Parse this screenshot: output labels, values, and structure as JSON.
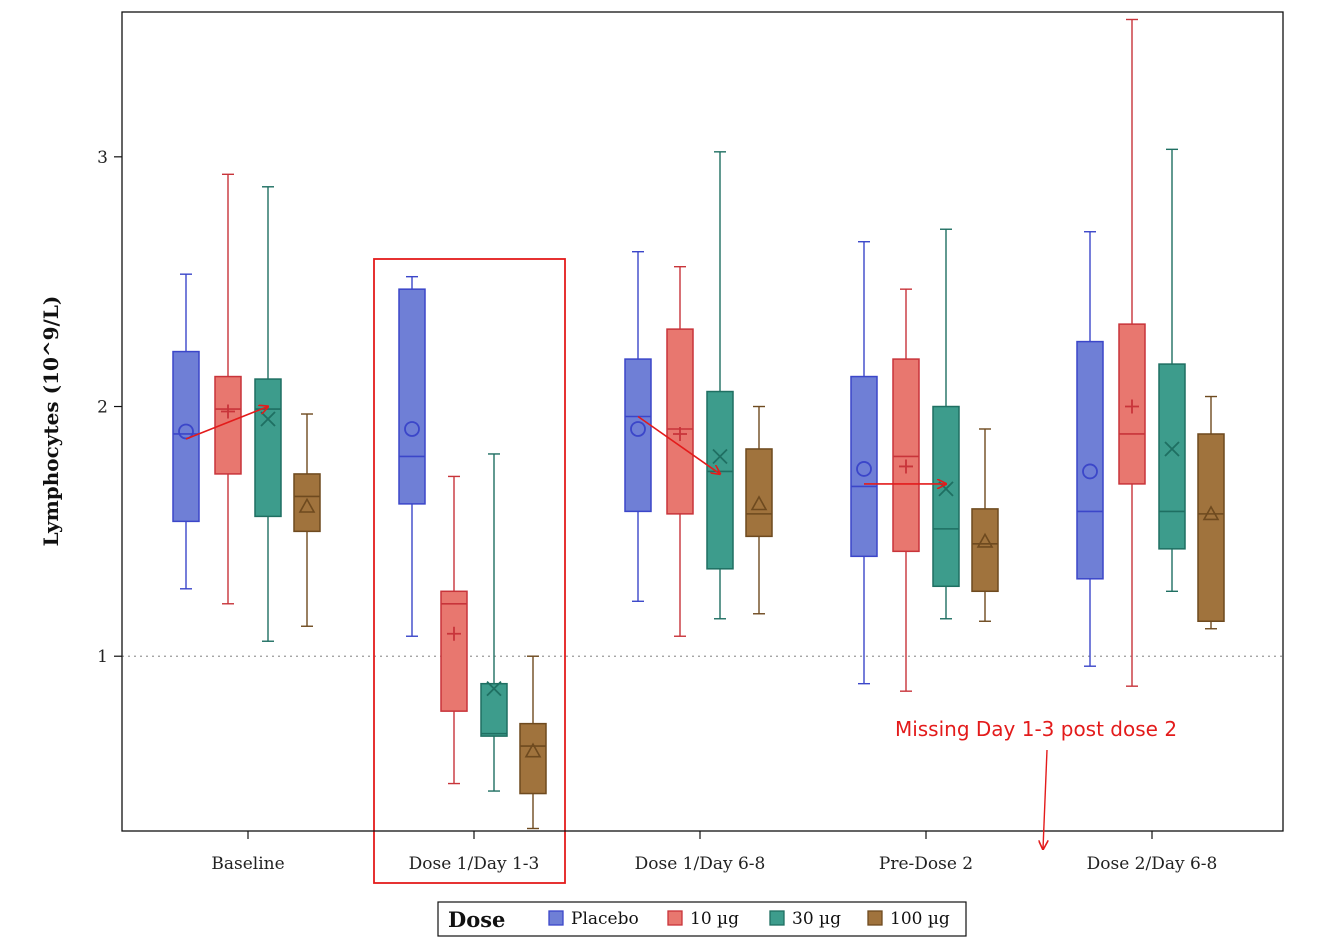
{
  "chart_data": {
    "type": "box",
    "ylabel": "Lymphocytes (10^9/L)",
    "xlabel": "",
    "ylim": [
      0.3,
      3.58
    ],
    "yticks": [
      1,
      2,
      3
    ],
    "reference_line": 1,
    "categories": [
      "Baseline",
      "Dose 1/Day 1-3",
      "Dose 1/Day 6-8",
      "Pre-Dose 2",
      "Dose 2/Day 6-8"
    ],
    "legend": {
      "title": "Dose",
      "position": "bottom"
    },
    "series": [
      {
        "name": "Placebo",
        "color": "#6f7fd6",
        "edge": "#3b46c9",
        "marker": "circle",
        "boxes": [
          {
            "min": 1.27,
            "q1": 1.54,
            "median": 1.89,
            "q3": 2.22,
            "max": 2.53,
            "mean": 1.9
          },
          {
            "min": 1.08,
            "q1": 1.61,
            "median": 1.8,
            "q3": 2.47,
            "max": 2.52,
            "mean": 1.91
          },
          {
            "min": 1.22,
            "q1": 1.58,
            "median": 1.96,
            "q3": 2.19,
            "max": 2.62,
            "mean": 1.91
          },
          {
            "min": 0.89,
            "q1": 1.4,
            "median": 1.68,
            "q3": 2.12,
            "max": 2.66,
            "mean": 1.75
          },
          {
            "min": 0.96,
            "q1": 1.31,
            "median": 1.58,
            "q3": 2.26,
            "max": 2.7,
            "mean": 1.74
          }
        ]
      },
      {
        "name": "10 µg",
        "color": "#e8776f",
        "edge": "#c8343a",
        "marker": "plus",
        "boxes": [
          {
            "min": 1.21,
            "q1": 1.73,
            "median": 1.99,
            "q3": 2.12,
            "max": 2.93,
            "mean": 1.98
          },
          {
            "min": 0.49,
            "q1": 0.78,
            "median": 1.21,
            "q3": 1.26,
            "max": 1.72,
            "mean": 1.09
          },
          {
            "min": 1.08,
            "q1": 1.57,
            "median": 1.91,
            "q3": 2.31,
            "max": 2.56,
            "mean": 1.89
          },
          {
            "min": 0.86,
            "q1": 1.42,
            "median": 1.8,
            "q3": 2.19,
            "max": 2.47,
            "mean": 1.76
          },
          {
            "min": 0.88,
            "q1": 1.69,
            "median": 1.89,
            "q3": 2.33,
            "max": 3.55,
            "mean": 2.0
          }
        ]
      },
      {
        "name": "30 µg",
        "color": "#3d9c8c",
        "edge": "#1f6f62",
        "marker": "x",
        "boxes": [
          {
            "min": 1.06,
            "q1": 1.56,
            "median": 1.99,
            "q3": 2.11,
            "max": 2.88,
            "mean": 1.95
          },
          {
            "min": 0.46,
            "q1": 0.68,
            "median": 0.69,
            "q3": 0.89,
            "max": 1.81,
            "mean": 0.87
          },
          {
            "min": 1.15,
            "q1": 1.35,
            "median": 1.74,
            "q3": 2.06,
            "max": 3.02,
            "mean": 1.8
          },
          {
            "min": 1.15,
            "q1": 1.28,
            "median": 1.51,
            "q3": 2.0,
            "max": 2.71,
            "mean": 1.67
          },
          {
            "min": 1.26,
            "q1": 1.43,
            "median": 1.58,
            "q3": 2.17,
            "max": 3.03,
            "mean": 1.83
          }
        ]
      },
      {
        "name": "100 µg",
        "color": "#a0733d",
        "edge": "#6e4a1f",
        "marker": "triangle",
        "boxes": [
          {
            "min": 1.12,
            "q1": 1.5,
            "median": 1.64,
            "q3": 1.73,
            "max": 1.97,
            "mean": 1.6
          },
          {
            "min": 0.31,
            "q1": 0.45,
            "median": 0.64,
            "q3": 0.73,
            "max": 1.0,
            "mean": 0.62
          },
          {
            "min": 1.17,
            "q1": 1.48,
            "median": 1.57,
            "q3": 1.83,
            "max": 2.0,
            "mean": 1.61
          },
          {
            "min": 1.14,
            "q1": 1.26,
            "median": 1.45,
            "q3": 1.59,
            "max": 1.91,
            "mean": 1.46
          },
          {
            "min": 1.11,
            "q1": 1.14,
            "median": 1.57,
            "q3": 1.89,
            "max": 2.04,
            "mean": 1.57
          }
        ]
      }
    ],
    "annotations": {
      "note_text": "Missing Day 1-3 post dose 2",
      "highlight_category": "Dose 1/Day 1-3",
      "highlight_color": "#e31b1b",
      "arrows": [
        {
          "from": {
            "category": 0,
            "series": 0,
            "y": 1.87
          },
          "to": {
            "category": 0,
            "series": 2,
            "y": 2.0
          }
        },
        {
          "from": {
            "category": 2,
            "series": 0,
            "y": 1.96
          },
          "to": {
            "category": 2,
            "series": 2,
            "y": 1.73
          }
        },
        {
          "from": {
            "category": 3,
            "series": 0,
            "y": 1.69
          },
          "to": {
            "category": 3,
            "series": 2,
            "y": 1.69
          }
        }
      ]
    }
  }
}
